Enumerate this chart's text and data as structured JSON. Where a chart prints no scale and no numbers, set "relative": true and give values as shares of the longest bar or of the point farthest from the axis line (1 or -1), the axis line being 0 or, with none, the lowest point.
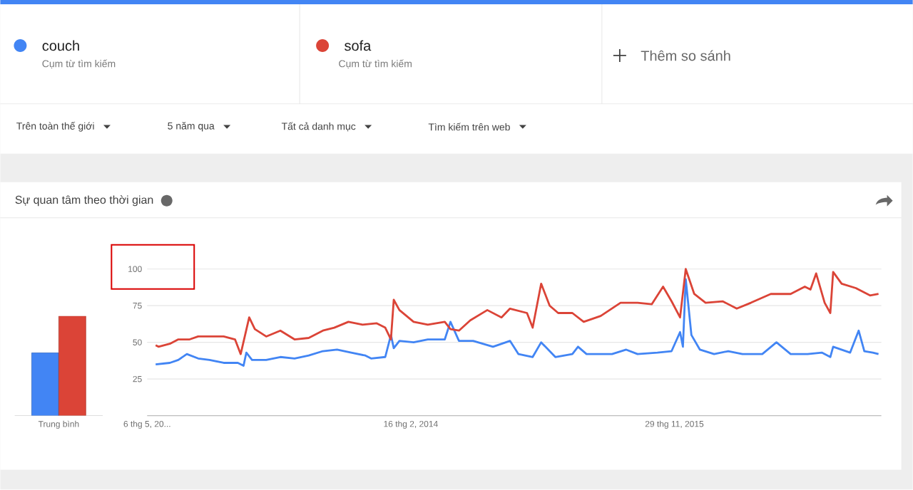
{
  "chart_data": [
    {
      "type": "line",
      "title": "Sự quan tâm theo thời gian",
      "legend": "top",
      "grid": "y",
      "annotations": [
        "Cụm từ tìm kiếm",
        "Cụm từ tìm kiếm",
        "Thêm so sánh",
        "Trên toàn thế giới",
        "5 năm qua",
        "Tất cả danh mục",
        "Tìm kiếm trên web"
      ],
      "xlim": [
        "2012-05-06",
        "2017-04-23"
      ],
      "xticks": [
        {
          "value": "2012-05-06",
          "label": "6 thg 5, 20..."
        },
        {
          "value": "2014-02-16",
          "label": "16 thg 2, 2014"
        },
        {
          "value": "2015-11-29",
          "label": "29 thg 11, 2015"
        }
      ],
      "ylim": [
        0,
        100
      ],
      "yticks": [
        25,
        50,
        75,
        100
      ],
      "series": [
        {
          "name": "couch",
          "color": "#4285f4",
          "x": [
            "2012-05-27",
            "2012-07-01",
            "2012-07-22",
            "2012-08-12",
            "2012-09-09",
            "2012-10-07",
            "2012-11-11",
            "2012-12-16",
            "2012-12-30",
            "2013-01-06",
            "2013-01-20",
            "2013-02-24",
            "2013-03-31",
            "2013-05-05",
            "2013-06-09",
            "2013-07-14",
            "2013-08-18",
            "2013-09-22",
            "2013-10-27",
            "2013-11-10",
            "2013-12-15",
            "2013-12-29",
            "2014-01-05",
            "2014-01-19",
            "2014-02-23",
            "2014-03-30",
            "2014-05-11",
            "2014-05-25",
            "2014-06-15",
            "2014-07-20",
            "2014-09-07",
            "2014-10-19",
            "2014-11-09",
            "2014-12-14",
            "2015-01-04",
            "2015-02-08",
            "2015-03-22",
            "2015-04-05",
            "2015-04-26",
            "2015-06-28",
            "2015-08-02",
            "2015-08-30",
            "2015-10-18",
            "2015-11-22",
            "2015-12-13",
            "2015-12-20",
            "2015-12-27",
            "2016-01-10",
            "2016-01-31",
            "2016-03-06",
            "2016-04-10",
            "2016-05-15",
            "2016-07-03",
            "2016-08-07",
            "2016-09-11",
            "2016-10-23",
            "2016-11-27",
            "2016-12-18",
            "2016-12-25",
            "2017-02-05",
            "2017-02-26",
            "2017-03-12",
            "2017-04-02",
            "2017-04-16"
          ],
          "values": [
            35,
            36,
            38,
            42,
            39,
            38,
            36,
            36,
            34,
            43,
            38,
            38,
            40,
            39,
            41,
            44,
            45,
            43,
            41,
            39,
            40,
            55,
            46,
            51,
            50,
            52,
            52,
            64,
            51,
            51,
            47,
            51,
            42,
            40,
            50,
            40,
            42,
            47,
            42,
            42,
            45,
            42,
            43,
            44,
            57,
            47,
            93,
            55,
            45,
            42,
            44,
            42,
            42,
            50,
            42,
            42,
            43,
            40,
            47,
            43,
            58,
            44,
            43,
            42
          ]
        },
        {
          "name": "sofa",
          "color": "#db4437",
          "x": [
            "2012-05-27",
            "2012-06-03",
            "2012-07-01",
            "2012-07-22",
            "2012-08-19",
            "2012-09-09",
            "2012-10-07",
            "2012-11-11",
            "2012-12-09",
            "2012-12-23",
            "2013-01-13",
            "2013-01-27",
            "2013-02-24",
            "2013-03-31",
            "2013-05-05",
            "2013-06-09",
            "2013-07-14",
            "2013-08-11",
            "2013-09-15",
            "2013-10-20",
            "2013-11-24",
            "2013-12-15",
            "2013-12-29",
            "2014-01-05",
            "2014-01-19",
            "2014-02-23",
            "2014-03-30",
            "2014-05-11",
            "2014-05-25",
            "2014-06-15",
            "2014-07-13",
            "2014-08-24",
            "2014-09-28",
            "2014-10-19",
            "2014-11-30",
            "2014-12-14",
            "2015-01-04",
            "2015-01-25",
            "2015-02-15",
            "2015-03-22",
            "2015-04-19",
            "2015-05-31",
            "2015-07-19",
            "2015-08-30",
            "2015-10-04",
            "2015-11-01",
            "2015-11-22",
            "2015-12-13",
            "2015-12-27",
            "2016-01-17",
            "2016-02-14",
            "2016-03-27",
            "2016-05-01",
            "2016-06-05",
            "2016-07-24",
            "2016-09-11",
            "2016-10-16",
            "2016-10-30",
            "2016-11-13",
            "2016-12-04",
            "2016-12-18",
            "2016-12-25",
            "2017-01-15",
            "2017-02-19",
            "2017-03-26",
            "2017-04-16"
          ],
          "values": [
            48,
            47,
            49,
            52,
            52,
            54,
            54,
            54,
            52,
            42,
            67,
            59,
            54,
            58,
            52,
            53,
            58,
            60,
            64,
            62,
            63,
            60,
            52,
            79,
            72,
            64,
            62,
            64,
            59,
            58,
            65,
            72,
            67,
            73,
            70,
            60,
            90,
            75,
            70,
            70,
            64,
            68,
            77,
            77,
            76,
            88,
            78,
            67,
            100,
            83,
            77,
            78,
            73,
            77,
            83,
            83,
            88,
            86,
            97,
            77,
            70,
            98,
            90,
            87,
            82,
            83
          ]
        }
      ]
    },
    {
      "type": "bar",
      "relative": true,
      "categories": [
        "Trung bình"
      ],
      "series": [
        {
          "color": "#4285f4",
          "values": [
            0.63
          ]
        },
        {
          "color": "#db4437",
          "values": [
            1
          ]
        }
      ]
    }
  ]
}
